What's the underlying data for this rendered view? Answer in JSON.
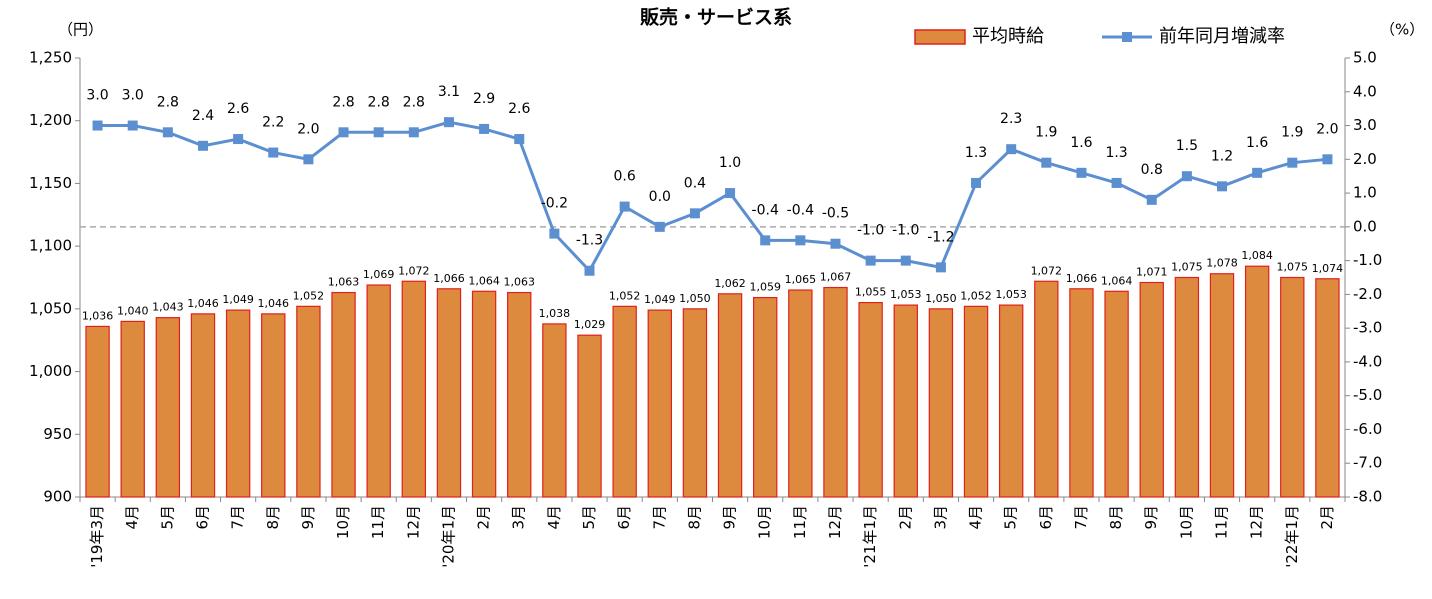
{
  "chart_data": {
    "type": "combo",
    "title": "販売・サービス系",
    "y_axis_label": "（円）",
    "y2_axis_label": "（%）",
    "categories": [
      "'19年3月",
      "4月",
      "5月",
      "6月",
      "7月",
      "8月",
      "9月",
      "10月",
      "11月",
      "12月",
      "'20年1月",
      "2月",
      "3月",
      "4月",
      "5月",
      "6月",
      "7月",
      "8月",
      "9月",
      "10月",
      "11月",
      "12月",
      "'21年1月",
      "2月",
      "3月",
      "4月",
      "5月",
      "6月",
      "7月",
      "8月",
      "9月",
      "10月",
      "11月",
      "12月",
      "'22年1月",
      "2月"
    ],
    "series": [
      {
        "name": "平均時給",
        "type": "bar",
        "color": "#dd8a3e",
        "edge_color": "#e0201b",
        "values": [
          1036,
          1040,
          1043,
          1046,
          1049,
          1046,
          1052,
          1063,
          1069,
          1072,
          1066,
          1064,
          1063,
          1038,
          1029,
          1052,
          1049,
          1050,
          1062,
          1059,
          1065,
          1067,
          1055,
          1053,
          1050,
          1052,
          1053,
          1072,
          1066,
          1064,
          1071,
          1075,
          1078,
          1084,
          1075,
          1074
        ],
        "value_labels": [
          "1,036",
          "1,040",
          "1,043",
          "1,046",
          "1,049",
          "1,046",
          "1,052",
          "1,063",
          "1,069",
          "1,072",
          "1,066",
          "1,064",
          "1,063",
          "1,038",
          "1,029",
          "1,052",
          "1,049",
          "1,050",
          "1,062",
          "1,059",
          "1,065",
          "1,067",
          "1,055",
          "1,053",
          "1,050",
          "1,052",
          "1,053",
          "1,072",
          "1,066",
          "1,064",
          "1,071",
          "1,075",
          "1,078",
          "1,084",
          "1,075",
          "1,074"
        ]
      },
      {
        "name": "前年同月増減率",
        "type": "line",
        "axis": "y2",
        "color": "#5b8fd0",
        "values": [
          3.0,
          3.0,
          2.8,
          2.4,
          2.6,
          2.2,
          2.0,
          2.8,
          2.8,
          2.8,
          3.1,
          2.9,
          2.6,
          -0.2,
          -1.3,
          0.6,
          0.0,
          0.4,
          1.0,
          -0.4,
          -0.4,
          -0.5,
          -1.0,
          -1.0,
          -1.2,
          1.3,
          2.3,
          1.9,
          1.6,
          1.3,
          0.8,
          1.5,
          1.2,
          1.6,
          1.9,
          2.0
        ],
        "value_labels": [
          "3.0",
          "3.0",
          "2.8",
          "2.4",
          "2.6",
          "2.2",
          "2.0",
          "2.8",
          "2.8",
          "2.8",
          "3.1",
          "2.9",
          "2.6",
          "-0.2",
          "-1.3",
          "0.6",
          "0.0",
          "0.4",
          "1.0",
          "-0.4",
          "-0.4",
          "-0.5",
          "-1.0",
          "-1.0",
          "-1.2",
          "1.3",
          "2.3",
          "1.9",
          "1.6",
          "1.3",
          "0.8",
          "1.5",
          "1.2",
          "1.6",
          "1.9",
          "2.0"
        ]
      }
    ],
    "ylim": [
      900,
      1250
    ],
    "yticks": [
      900,
      950,
      {
        "value": 1000,
        "label": "1,000"
      },
      {
        "value": 1050,
        "label": "1,050"
      },
      {
        "value": 1100,
        "label": "1,100"
      },
      {
        "value": 1150,
        "label": "1,150"
      },
      {
        "value": 1200,
        "label": "1,200"
      },
      {
        "value": 1250,
        "label": "1,250"
      }
    ],
    "y2lim": [
      -8,
      5
    ],
    "y2ticks": [
      {
        "value": -8,
        "label": "-8.0"
      },
      {
        "value": -7,
        "label": "-7.0"
      },
      {
        "value": -6,
        "label": "-6.0"
      },
      {
        "value": -5,
        "label": "-5.0"
      },
      {
        "value": -4,
        "label": "-4.0"
      },
      {
        "value": -3,
        "label": "-3.0"
      },
      {
        "value": -2,
        "label": "-2.0"
      },
      {
        "value": -1,
        "label": "-1.0"
      },
      {
        "value": 0,
        "label": "0.0"
      },
      {
        "value": 1,
        "label": "1.0"
      },
      {
        "value": 2,
        "label": "2.0"
      },
      {
        "value": 3,
        "label": "3.0"
      },
      {
        "value": 4,
        "label": "4.0"
      },
      {
        "value": 5,
        "label": "5.0"
      }
    ],
    "y2_reference_line": 0,
    "legend": "top-right"
  }
}
